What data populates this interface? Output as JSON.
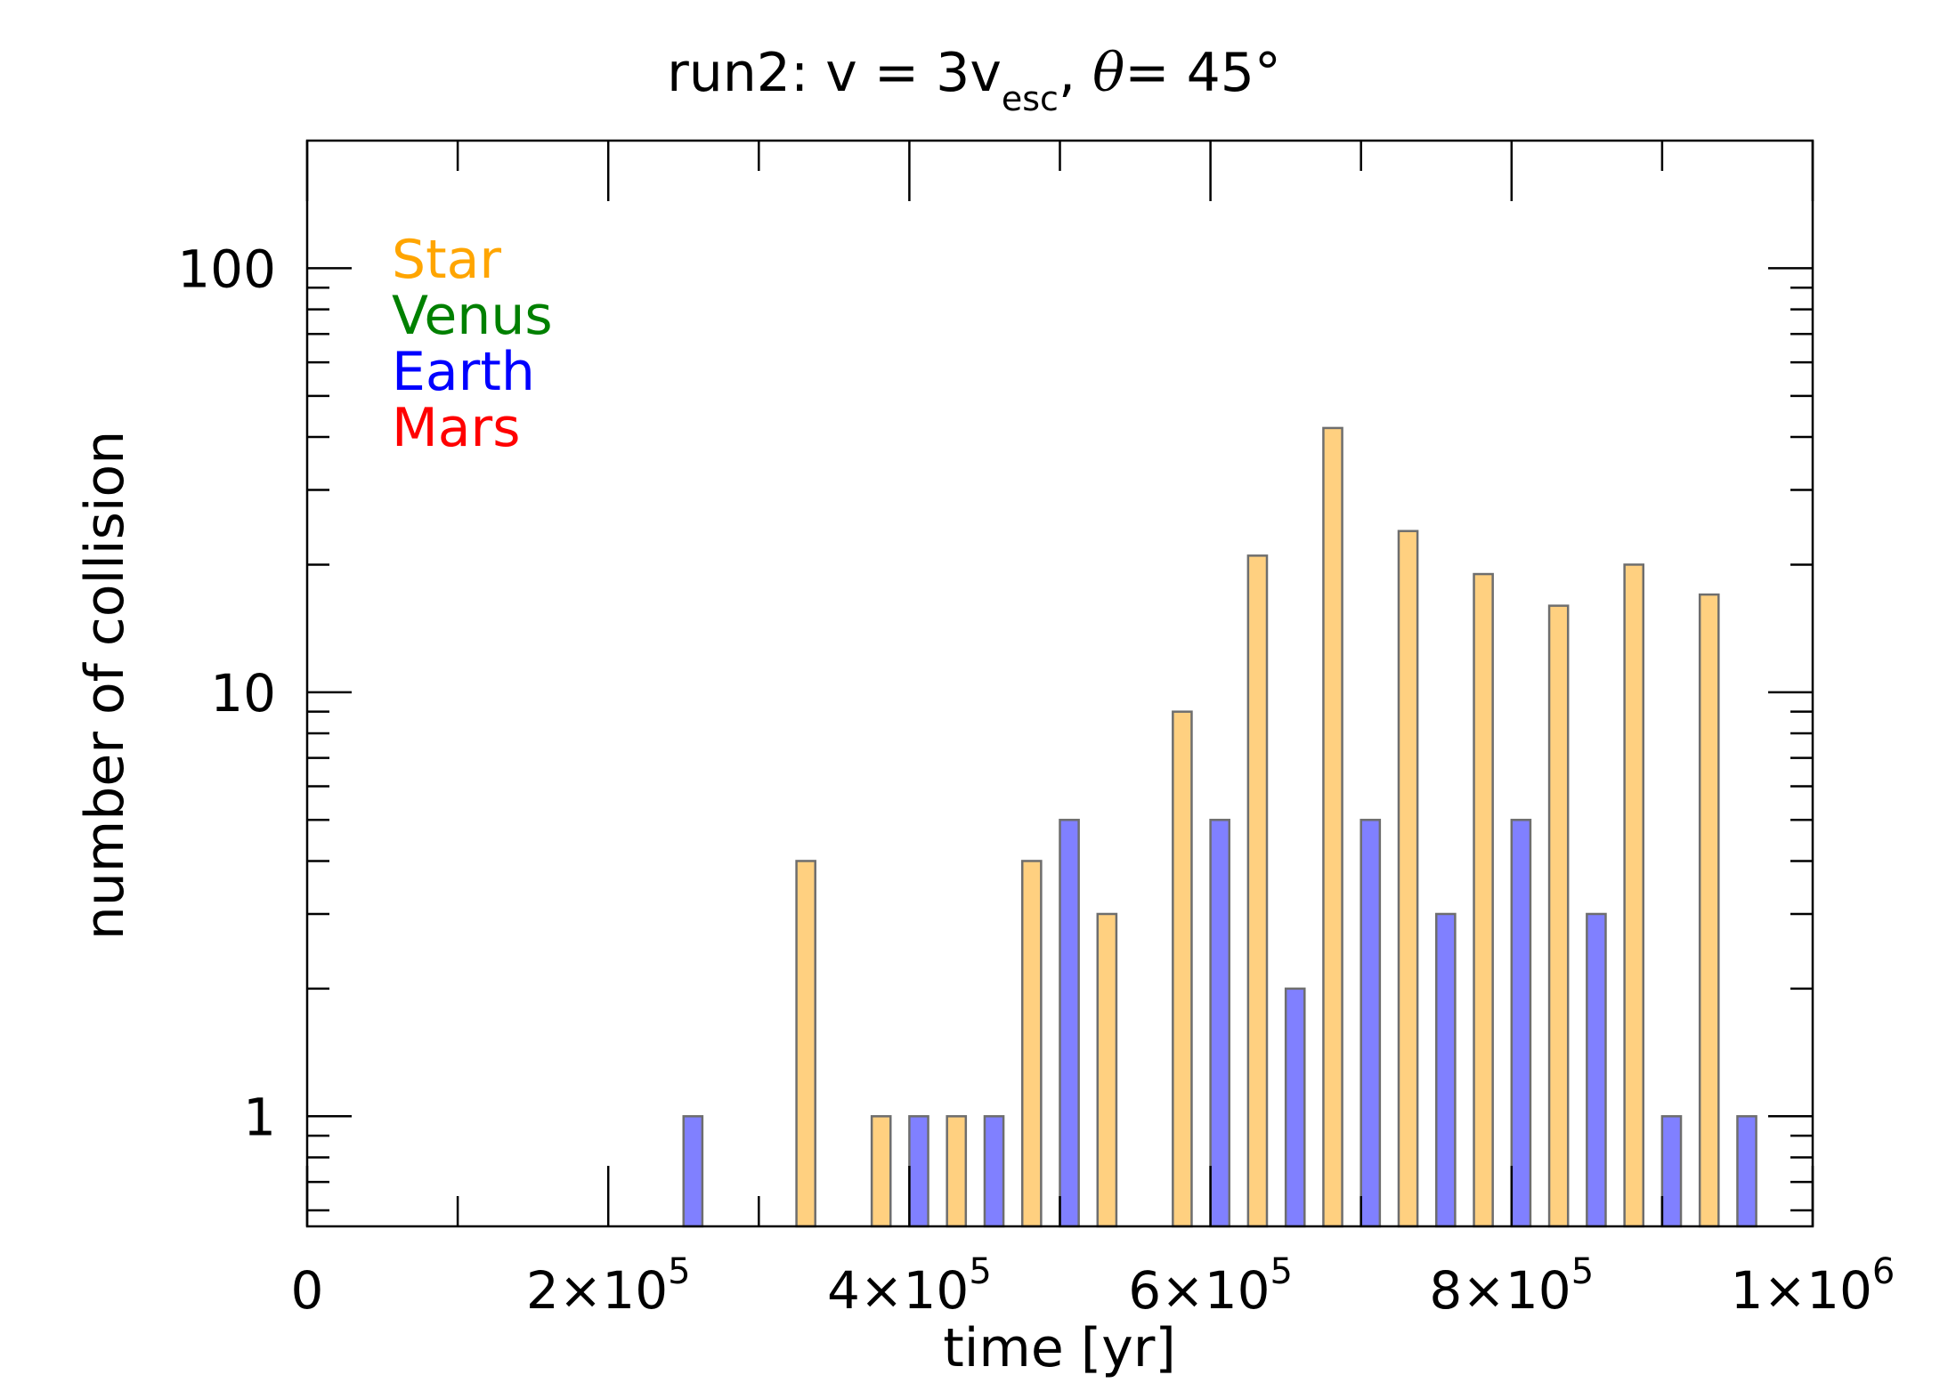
{
  "chart_data": {
    "type": "bar",
    "title": {
      "main": "run2: v = 3v",
      "subscript": "esc",
      "after_sub": ", ",
      "theta": "θ",
      "tail": "= 45°"
    },
    "xlabel": "time [yr]",
    "ylabel": "number of collision",
    "xlim": [
      0,
      1000000
    ],
    "ylim": [
      0.55,
      200
    ],
    "yscale": "log",
    "x_ticks": [
      {
        "value": 0,
        "mantissa": "0",
        "exp": ""
      },
      {
        "value": 200000,
        "mantissa": "2×10",
        "exp": "5"
      },
      {
        "value": 400000,
        "mantissa": "4×10",
        "exp": "5"
      },
      {
        "value": 600000,
        "mantissa": "6×10",
        "exp": "5"
      },
      {
        "value": 800000,
        "mantissa": "8×10",
        "exp": "5"
      },
      {
        "value": 1000000,
        "mantissa": "1×10",
        "exp": "6"
      }
    ],
    "y_ticks": [
      {
        "value": 1,
        "label": "1"
      },
      {
        "value": 10,
        "label": "10"
      },
      {
        "value": 100,
        "label": "100"
      }
    ],
    "bin_width": 12500,
    "legend_position": "top-left",
    "legend": [
      {
        "name": "Star",
        "color": "#ffa500"
      },
      {
        "name": "Venus",
        "color": "#008000"
      },
      {
        "name": "Earth",
        "color": "#0000ff"
      },
      {
        "name": "Mars",
        "color": "#ff0000"
      }
    ],
    "series": [
      {
        "name": "Star",
        "fill": "#ffd080",
        "x": [
          325000,
          375000,
          425000,
          475000,
          525000,
          575000,
          625000,
          675000,
          725000,
          775000,
          825000,
          875000,
          925000
        ],
        "values": [
          4,
          1,
          1,
          4,
          3,
          9,
          21,
          42,
          24,
          19,
          16,
          20,
          17
        ]
      },
      {
        "name": "Earth",
        "fill": "#8080ff",
        "x": [
          250000,
          400000,
          450000,
          500000,
          600000,
          650000,
          700000,
          750000,
          800000,
          850000,
          900000,
          950000
        ],
        "values": [
          1,
          1,
          1,
          5,
          5,
          2,
          5,
          3,
          5,
          3,
          1,
          1
        ]
      }
    ]
  }
}
